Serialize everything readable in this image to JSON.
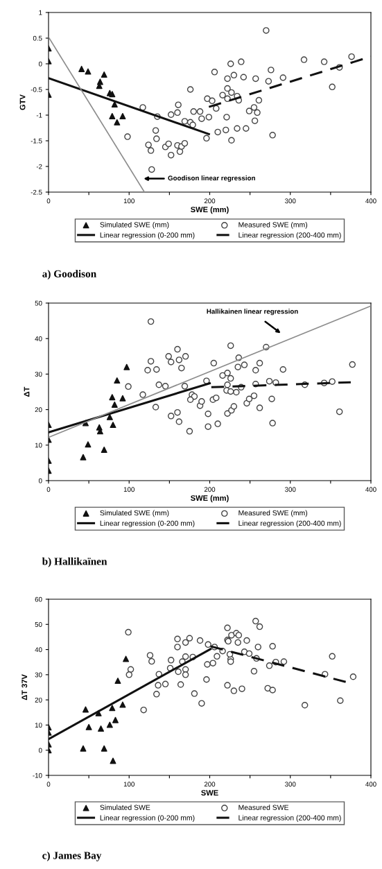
{
  "chart_data": [
    {
      "type": "scatter",
      "title": "a) Goodison",
      "xlabel": "SWE (mm)",
      "ylabel": "GTV",
      "xlim": [
        0,
        400
      ],
      "xticks": [
        0,
        {
          "value": 50,
          "label": null
        },
        100,
        {
          "value": 150,
          "label": null
        },
        200,
        {
          "value": 250,
          "label": null
        },
        300,
        {
          "value": 350,
          "label": null
        },
        400
      ],
      "ylim": [
        -2.5,
        1
      ],
      "yticks": [
        -2.5,
        -2,
        -1.5,
        -1,
        -0.5,
        0,
        0.5,
        1
      ],
      "legend": "bottom",
      "annotations": [
        "Goodison linear regression"
      ],
      "series": [
        {
          "name": "Simulated SWE (mm)",
          "type": "scatter",
          "marker": "triangle",
          "color": "#111111",
          "x": [
            0,
            0,
            0,
            41,
            49,
            69,
            64,
            63,
            76,
            79,
            82,
            79,
            92,
            85
          ],
          "values": [
            0.3,
            0.05,
            -0.6,
            -0.1,
            -0.15,
            -0.21,
            -0.35,
            -0.43,
            -0.57,
            -0.59,
            -0.79,
            -1.02,
            -1.02,
            -1.14
          ]
        },
        {
          "name": "Measured SWE (mm)",
          "type": "scatter",
          "marker": "circle",
          "color": "#444444",
          "x": [
            98,
            117,
            135,
            133,
            134,
            124,
            127,
            128,
            145,
            149,
            152,
            152,
            160,
            161,
            160,
            163,
            165,
            169,
            169,
            176,
            179,
            176,
            180,
            188,
            190,
            199,
            196,
            197,
            203,
            208,
            206,
            210,
            220,
            221,
            227,
            216,
            222,
            222,
            226,
            230,
            227,
            222,
            234,
            236,
            234,
            239,
            242,
            245,
            249,
            255,
            256,
            259,
            261,
            257,
            270,
            273,
            276,
            278,
            291,
            317,
            342,
            352,
            361,
            376
          ],
          "values": [
            -1.42,
            -0.85,
            -1.03,
            -1.3,
            -1.46,
            -1.58,
            -1.69,
            -2.06,
            -1.62,
            -1.56,
            -1.78,
            -0.99,
            -0.95,
            -0.8,
            -1.59,
            -1.71,
            -1.61,
            -1.55,
            -1.12,
            -1.14,
            -1.19,
            -0.5,
            -0.93,
            -0.93,
            -1.07,
            -1.04,
            -1.45,
            -0.68,
            -0.72,
            -0.87,
            -0.16,
            -1.33,
            -1.29,
            -1.04,
            -1.49,
            -0.61,
            -0.48,
            -0.29,
            0.0,
            -0.22,
            -0.56,
            -0.68,
            -0.63,
            -0.71,
            -1.26,
            0.04,
            -0.26,
            -1.26,
            -0.92,
            -0.85,
            -1.11,
            -0.95,
            -0.71,
            -0.29,
            0.65,
            -0.34,
            -0.12,
            -1.39,
            -0.27,
            0.08,
            0.04,
            -0.45,
            -0.07,
            0.14
          ]
        },
        {
          "name": "Linear regression (0-200 mm)",
          "type": "line",
          "line_style": "solid",
          "color": "#111111",
          "x": [
            0,
            199
          ],
          "values": [
            -0.28,
            -1.37
          ]
        },
        {
          "name": "Linear regression (200-400 mm)",
          "type": "line",
          "line_style": "dashed",
          "color": "#111111",
          "x": [
            199,
            400
          ],
          "values": [
            -0.84,
            0.14
          ]
        },
        {
          "type": "line",
          "line_style": "solid",
          "color": "#8c8c8c",
          "x": [
            0,
            119
          ],
          "values": [
            0.52,
            -2.5
          ]
        }
      ]
    },
    {
      "type": "scatter",
      "title": "b) Hallikaïnen",
      "xlabel": "SWE (mm)",
      "ylabel": "ΔT",
      "xlim": [
        0,
        400
      ],
      "xticks": [
        0,
        {
          "value": 50,
          "label": null
        },
        100,
        {
          "value": 150,
          "label": null
        },
        200,
        {
          "value": 250,
          "label": null
        },
        300,
        {
          "value": 350,
          "label": null
        },
        400
      ],
      "ylim": [
        0,
        50
      ],
      "yticks": [
        0,
        10,
        20,
        30,
        40,
        50
      ],
      "legend": "bottom",
      "annotations": [
        "Hallikainen linear regression"
      ],
      "series": [
        {
          "name": "Simulated SWE (mm)",
          "type": "scatter",
          "marker": "triangle",
          "color": "#111111",
          "x": [
            0,
            0,
            0,
            0,
            43,
            49,
            46,
            63,
            64,
            69,
            76,
            80,
            79,
            82,
            85,
            92,
            97
          ],
          "values": [
            15.7,
            11.5,
            5.6,
            2.8,
            6.6,
            10.2,
            16.2,
            15.0,
            13.9,
            8.7,
            17.9,
            15.7,
            23.5,
            21.4,
            28.2,
            23.2,
            32.0
          ]
        },
        {
          "name": "Measured SWE (mm)",
          "type": "scatter",
          "marker": "circle",
          "color": "#444444",
          "x": [
            127,
            127,
            123,
            134,
            99,
            117,
            133,
            137,
            145,
            149,
            152,
            160,
            162,
            170,
            165,
            169,
            152,
            160,
            162,
            175,
            178,
            181,
            176,
            188,
            190,
            196,
            198,
            198,
            205,
            204,
            208,
            210,
            216,
            222,
            226,
            222,
            221,
            226,
            233,
            239,
            226,
            236,
            235,
            243,
            222,
            227,
            230,
            246,
            249,
            255,
            257,
            262,
            262,
            257,
            270,
            274,
            282,
            277,
            278,
            291,
            318,
            342,
            352,
            361,
            377
          ],
          "values": [
            44.8,
            33.6,
            31.1,
            31.3,
            26.5,
            24.2,
            20.7,
            27.0,
            26.6,
            35.0,
            33.4,
            37.0,
            34.0,
            35.0,
            31.7,
            26.6,
            18.2,
            19.2,
            16.6,
            13.9,
            24.2,
            23.7,
            22.8,
            21.1,
            22.3,
            28.1,
            18.8,
            15.2,
            33.1,
            22.8,
            23.3,
            16.0,
            29.6,
            30.3,
            28.8,
            27.0,
            25.4,
            25.1,
            24.9,
            26.3,
            38.0,
            34.6,
            32.0,
            32.6,
            18.9,
            19.8,
            20.9,
            21.8,
            23.0,
            23.9,
            31.1,
            33.1,
            20.5,
            27.2,
            37.6,
            28.0,
            27.6,
            23.0,
            16.2,
            31.3,
            27.0,
            27.5,
            27.9,
            19.4,
            32.7
          ]
        },
        {
          "name": "Linear regression (0-200 mm)",
          "type": "line",
          "line_style": "solid",
          "color": "#111111",
          "x": [
            0,
            200
          ],
          "values": [
            13.6,
            27.4
          ]
        },
        {
          "name": "Linear regression (200-400 mm)",
          "type": "line",
          "line_style": "dashed",
          "color": "#111111",
          "x": [
            202,
            375
          ],
          "values": [
            26.3,
            27.7
          ]
        },
        {
          "type": "line",
          "line_style": "solid",
          "color": "#8c8c8c",
          "x": [
            0,
            400
          ],
          "values": [
            12.2,
            49.2
          ]
        }
      ]
    },
    {
      "type": "scatter",
      "title": "c) James Bay",
      "xlabel": "SWE",
      "ylabel": "ΔT 37V",
      "xlim": [
        0,
        400
      ],
      "xticks": [
        0,
        {
          "value": 50,
          "label": null
        },
        100,
        {
          "value": 150,
          "label": null
        },
        200,
        {
          "value": 250,
          "label": null
        },
        300,
        {
          "value": 350,
          "label": null
        },
        400
      ],
      "ylim": [
        -10,
        60
      ],
      "yticks": [
        -10,
        0,
        10,
        20,
        30,
        40,
        50,
        60
      ],
      "legend": "bottom",
      "series": [
        {
          "name": "Simulated SWE",
          "type": "scatter",
          "marker": "triangle",
          "color": "#111111",
          "x": [
            0,
            0,
            0,
            0,
            46,
            50,
            65,
            62,
            43,
            69,
            76,
            79,
            83,
            86,
            92,
            96,
            80
          ],
          "values": [
            9.1,
            7.0,
            2.3,
            0,
            16.2,
            9.2,
            8.6,
            14.7,
            0.7,
            0.7,
            10.1,
            16.8,
            12.0,
            27.6,
            18.1,
            36.3,
            -4.2
          ]
        },
        {
          "name": "Measured SWE",
          "type": "scatter",
          "marker": "circle",
          "color": "#444444",
          "x": [
            99,
            102,
            100,
            118,
            126,
            128,
            137,
            136,
            134,
            145,
            152,
            151,
            160,
            160,
            161,
            164,
            170,
            175,
            166,
            170,
            170,
            170,
            179,
            188,
            181,
            190,
            196,
            198,
            197,
            204,
            206,
            209,
            216,
            222,
            227,
            222,
            223,
            233,
            236,
            235,
            226,
            226,
            225,
            222,
            230,
            240,
            243,
            249,
            246,
            257,
            262,
            260,
            258,
            255,
            278,
            274,
            282,
            272,
            278,
            292,
            318,
            343,
            352,
            362,
            378
          ],
          "values": [
            46.9,
            32.1,
            30.0,
            16.0,
            37.7,
            35.3,
            30.2,
            25.8,
            22.3,
            26.3,
            35.8,
            32.6,
            44.2,
            41.0,
            31.2,
            26.1,
            42.8,
            44.5,
            35.2,
            37.2,
            32.1,
            30.0,
            37.0,
            43.6,
            22.5,
            18.6,
            28.1,
            42.0,
            34.1,
            34.6,
            41.0,
            37.3,
            39.4,
            48.6,
            45.7,
            43.8,
            43.3,
            46.5,
            45.7,
            42.8,
            36.2,
            35.2,
            38.1,
            25.8,
            23.6,
            24.4,
            39.1,
            38.4,
            43.6,
            51.3,
            49.1,
            41.0,
            36.5,
            31.4,
            41.3,
            33.6,
            35.0,
            24.6,
            23.9,
            35.2,
            17.9,
            30.2,
            37.3,
            19.7,
            29.2
          ]
        },
        {
          "name": "Linear regression (0-200 mm)",
          "type": "line",
          "line_style": "solid",
          "color": "#111111",
          "x": [
            0,
            201
          ],
          "values": [
            4.4,
            40.2
          ]
        },
        {
          "name": "Linear regression (200-400 mm)",
          "type": "line",
          "line_style": "dashed",
          "color": "#111111",
          "x": [
            201,
            369
          ],
          "values": [
            41.3,
            27.1
          ]
        }
      ]
    }
  ]
}
